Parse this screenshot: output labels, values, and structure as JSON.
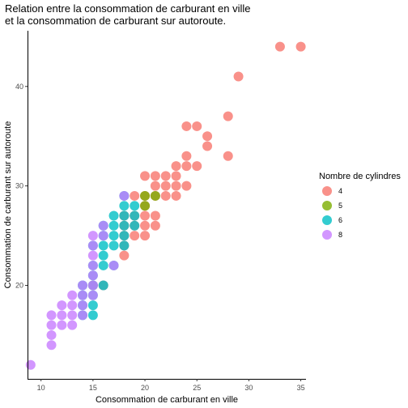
{
  "chart_data": {
    "type": "scatter",
    "title": [
      "Relation entre la consommation de carburant en ville",
      "et la consommation de carburant sur autoroute."
    ],
    "xlabel": "Consommation de carburant en ville",
    "ylabel": "Consommation de carburant sur autoroute",
    "xlim": [
      8.7,
      35.5
    ],
    "ylim": [
      10.6,
      45.6
    ],
    "xticks": [
      10,
      15,
      20,
      25,
      30,
      35
    ],
    "yticks": [
      20,
      30,
      40
    ],
    "grid": false,
    "legend": {
      "title": "Nombre de cylindres",
      "placement": "right"
    },
    "series": [
      {
        "name": "4",
        "color": "#F8766D",
        "points": [
          [
            15,
            20
          ],
          [
            16,
            20
          ],
          [
            18,
            23
          ],
          [
            18,
            24
          ],
          [
            18,
            25
          ],
          [
            18,
            26
          ],
          [
            18,
            27
          ],
          [
            19,
            25
          ],
          [
            19,
            26
          ],
          [
            19,
            27
          ],
          [
            19,
            29
          ],
          [
            20,
            25
          ],
          [
            20,
            26
          ],
          [
            20,
            27
          ],
          [
            20,
            28
          ],
          [
            20,
            29
          ],
          [
            20,
            31
          ],
          [
            21,
            26
          ],
          [
            21,
            27
          ],
          [
            21,
            29
          ],
          [
            21,
            30
          ],
          [
            21,
            31
          ],
          [
            22,
            29
          ],
          [
            22,
            30
          ],
          [
            22,
            31
          ],
          [
            23,
            29
          ],
          [
            23,
            30
          ],
          [
            23,
            31
          ],
          [
            23,
            32
          ],
          [
            24,
            30
          ],
          [
            24,
            32
          ],
          [
            24,
            33
          ],
          [
            24,
            36
          ],
          [
            25,
            32
          ],
          [
            25,
            36
          ],
          [
            26,
            34
          ],
          [
            26,
            35
          ],
          [
            28,
            33
          ],
          [
            28,
            37
          ],
          [
            29,
            41
          ],
          [
            33,
            44
          ],
          [
            35,
            44
          ]
        ]
      },
      {
        "name": "5",
        "color": "#7CAE00",
        "points": [
          [
            20,
            28
          ],
          [
            20,
            29
          ],
          [
            21,
            29
          ]
        ]
      },
      {
        "name": "6",
        "color": "#00BFC4",
        "points": [
          [
            14,
            17
          ],
          [
            14,
            18
          ],
          [
            14,
            19
          ],
          [
            14,
            20
          ],
          [
            15,
            17
          ],
          [
            15,
            18
          ],
          [
            15,
            19
          ],
          [
            15,
            20
          ],
          [
            15,
            21
          ],
          [
            15,
            22
          ],
          [
            15,
            24
          ],
          [
            16,
            20
          ],
          [
            16,
            22
          ],
          [
            16,
            23
          ],
          [
            16,
            24
          ],
          [
            16,
            25
          ],
          [
            16,
            26
          ],
          [
            17,
            22
          ],
          [
            17,
            24
          ],
          [
            17,
            25
          ],
          [
            17,
            26
          ],
          [
            17,
            27
          ],
          [
            18,
            24
          ],
          [
            18,
            25
          ],
          [
            18,
            26
          ],
          [
            18,
            27
          ],
          [
            18,
            28
          ],
          [
            18,
            29
          ],
          [
            19,
            26
          ],
          [
            19,
            27
          ],
          [
            19,
            28
          ]
        ]
      },
      {
        "name": "8",
        "color": "#C77CFF",
        "points": [
          [
            9,
            12
          ],
          [
            11,
            14
          ],
          [
            11,
            15
          ],
          [
            11,
            16
          ],
          [
            11,
            17
          ],
          [
            12,
            16
          ],
          [
            12,
            17
          ],
          [
            12,
            18
          ],
          [
            13,
            16
          ],
          [
            13,
            17
          ],
          [
            13,
            18
          ],
          [
            13,
            19
          ],
          [
            14,
            17
          ],
          [
            14,
            18
          ],
          [
            14,
            19
          ],
          [
            14,
            20
          ],
          [
            15,
            19
          ],
          [
            15,
            20
          ],
          [
            15,
            21
          ],
          [
            15,
            22
          ],
          [
            15,
            23
          ],
          [
            15,
            24
          ],
          [
            15,
            25
          ],
          [
            16,
            25
          ],
          [
            16,
            26
          ],
          [
            17,
            22
          ],
          [
            18,
            29
          ]
        ]
      }
    ]
  }
}
